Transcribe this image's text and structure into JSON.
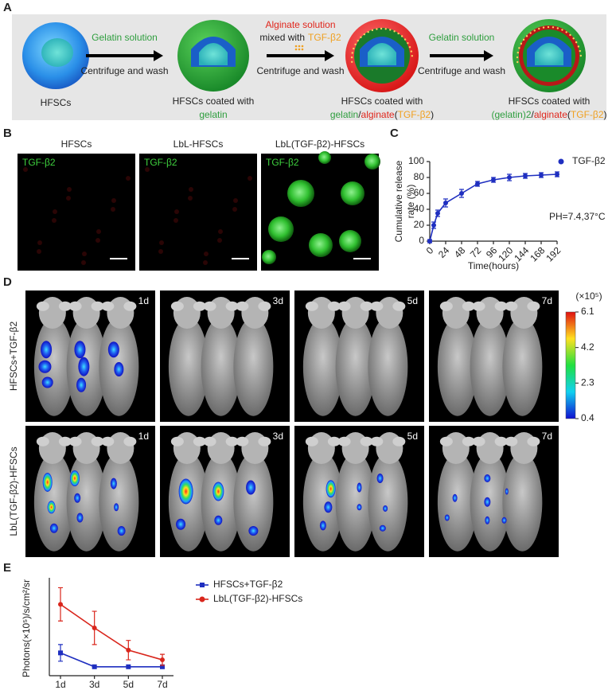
{
  "panel_a": {
    "label": "A",
    "arrows": [
      {
        "above": [
          [
            {
              "text": "Gelatin solution",
              "color": "#2e9e3e"
            }
          ]
        ],
        "below": "Centrifuge and wash"
      },
      {
        "above": [
          [
            {
              "text": "Alginate solution",
              "color": "#e0261c"
            }
          ],
          [
            {
              "text": "mixed with",
              "color": "#222222"
            },
            {
              "text": "TGF-β2",
              "color": "#f0a020"
            }
          ]
        ],
        "below": "Centrifuge and wash"
      },
      {
        "above": [
          [
            {
              "text": "Gelatin solution",
              "color": "#2e9e3e"
            }
          ]
        ],
        "below": "Centrifuge and wash"
      }
    ],
    "captions": [
      [
        [
          {
            "text": "HFSCs",
            "color": "#222222"
          }
        ]
      ],
      [
        [
          {
            "text": "HFSCs coated with",
            "color": "#222222"
          }
        ],
        [
          {
            "text": "gelatin",
            "color": "#2e9e3e"
          }
        ]
      ],
      [
        [
          {
            "text": "HFSCs coated with",
            "color": "#222222"
          }
        ],
        [
          {
            "text": "gelatin",
            "color": "#2e9e3e"
          },
          {
            "text": "/",
            "color": "#222222"
          },
          {
            "text": "alginate",
            "color": "#e0261c"
          },
          {
            "text": "(",
            "color": "#222222"
          },
          {
            "text": "TGF-β2",
            "color": "#f0a020"
          },
          {
            "text": ")",
            "color": "#222222"
          }
        ]
      ],
      [
        [
          {
            "text": "HFSCs coated with",
            "color": "#222222"
          }
        ],
        [
          {
            "text": "(gelatin)2",
            "color": "#2e9e3e"
          },
          {
            "text": "/",
            "color": "#222222"
          },
          {
            "text": "alginate",
            "color": "#e0261c"
          },
          {
            "text": "(",
            "color": "#222222"
          },
          {
            "text": "TGF-β2",
            "color": "#f0a020"
          },
          {
            "text": ")",
            "color": "#222222"
          }
        ]
      ]
    ]
  },
  "panel_b": {
    "label": "B",
    "panels": [
      {
        "title": "HFSCs",
        "stain": "TGF-β2"
      },
      {
        "title": "LbL-HFSCs",
        "stain": "TGF-β2"
      },
      {
        "title": "LbL(TGF-β2)-HFSCs",
        "stain": "TGF-β2"
      }
    ]
  },
  "panel_d": {
    "label": "D",
    "rows": [
      "HFSCs+TGF-β2",
      "LbL(TGF-β2)-HFSCs"
    ],
    "days": [
      "1d",
      "3d",
      "5d",
      "7d"
    ],
    "colorbar": {
      "title": "(×10⁵)",
      "lim": [
        0.4,
        6.1
      ],
      "ticks": [
        6.1,
        4.2,
        2.3,
        0.4
      ]
    }
  },
  "chart_data": [
    {
      "label": "C",
      "type": "line",
      "ylabel": [
        "Cumulative release",
        "rate (%)"
      ],
      "xlabel": "Time(hours)",
      "annotation": "PH=7.4,37°C",
      "x": [
        0,
        6,
        12,
        24,
        48,
        72,
        96,
        120,
        144,
        168,
        192
      ],
      "series": [
        {
          "name": "TGF-β2",
          "color": "#1f2fc0",
          "marker": "circle",
          "values": [
            0,
            20,
            35,
            48,
            60,
            72,
            77,
            80,
            82,
            83,
            84
          ],
          "errors": [
            2,
            4,
            4,
            5,
            5,
            3,
            3,
            4,
            3,
            3,
            3
          ]
        }
      ],
      "xlim": [
        0,
        192
      ],
      "xticks": [
        0,
        24,
        48,
        72,
        96,
        120,
        144,
        168,
        192
      ],
      "ylim": [
        0,
        100
      ],
      "yticks": [
        0,
        20,
        40,
        60,
        80,
        100
      ],
      "legend": "upper right"
    },
    {
      "label": "E",
      "type": "line",
      "ylabel": "Photons(×10⁵)/s/cm²/sr",
      "categories": [
        "1d",
        "3d",
        "5d",
        "7d"
      ],
      "series": [
        {
          "name": "HFSCs+TGF-β2",
          "color": "#1f2fc0",
          "marker": "square",
          "values": [
            1.0,
            0,
            0,
            0
          ],
          "errors": [
            0.6,
            0,
            0,
            0
          ]
        },
        {
          "name": "LbL(TGF-β2)-HFSCs",
          "color": "#d9261c",
          "marker": "circle",
          "values": [
            4.5,
            2.8,
            1.2,
            0.5
          ],
          "errors": [
            1.2,
            1.2,
            0.7,
            0.4
          ]
        }
      ],
      "ylim": [
        -0.3,
        6.3
      ],
      "legend": "upper right"
    }
  ]
}
